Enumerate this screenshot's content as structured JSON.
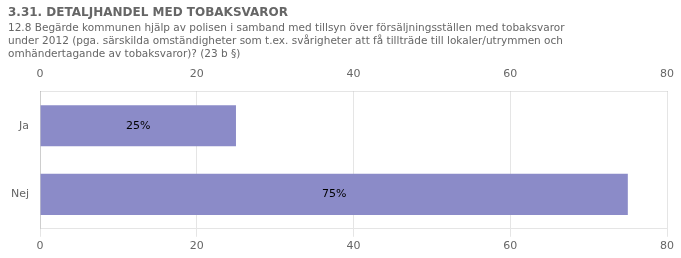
{
  "chart_data": {
    "type": "bar",
    "orientation": "horizontal",
    "title": "3.31. DETALJHANDEL MED TOBAKSVAROR",
    "subtitle": "12.8 Begärde kommunen hjälp av polisen i samband med tillsyn över försäljningsställen med tobaksvaror\nunder 2012 (pga. särskilda omständigheter som t.ex. svårigheter att få tillträde till lokaler/utrymmen och\nomhändertagande av tobaksvaror)? (23 b §)",
    "categories": [
      "Ja",
      "Nej"
    ],
    "values": [
      25,
      75
    ],
    "value_labels": [
      "25%",
      "75%"
    ],
    "data_labels": true,
    "color": "#8b8bc8",
    "xlim": [
      0,
      80
    ],
    "xticks": [
      0,
      20,
      40,
      60,
      80
    ],
    "grid": true
  }
}
